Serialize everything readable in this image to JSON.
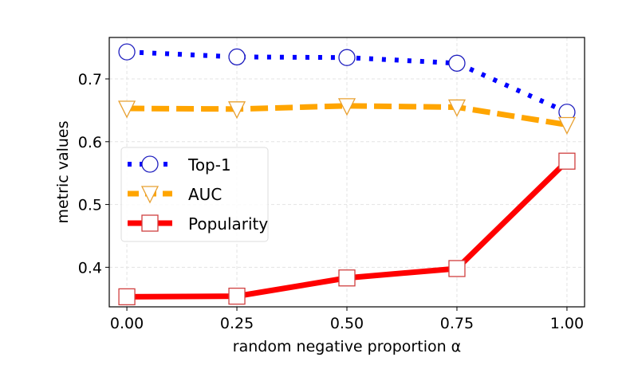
{
  "chart_data": {
    "type": "line",
    "title": "",
    "xlabel": "random negative proportion α",
    "ylabel": "metric values",
    "x": [
      0.0,
      0.25,
      0.5,
      0.75,
      1.0
    ],
    "xlim": [
      -0.04,
      1.04
    ],
    "ylim": [
      0.337,
      0.766
    ],
    "xticks": [
      0.0,
      0.25,
      0.5,
      0.75,
      1.0
    ],
    "xtick_labels": [
      "0.00",
      "0.25",
      "0.50",
      "0.75",
      "1.00"
    ],
    "yticks": [
      0.4,
      0.5,
      0.6,
      0.7
    ],
    "ytick_labels": [
      "0.4",
      "0.5",
      "0.6",
      "0.7"
    ],
    "grid": true,
    "legend_position": "center-left",
    "series": [
      {
        "name": "Top-1",
        "values": [
          0.743,
          0.735,
          0.734,
          0.725,
          0.647
        ],
        "color": "#0000ff",
        "line": "dotted",
        "marker": "circle",
        "marker_color": "#1f1fbf"
      },
      {
        "name": "AUC",
        "values": [
          0.653,
          0.652,
          0.657,
          0.655,
          0.627
        ],
        "color": "#ffa500",
        "line": "dashed",
        "marker": "triangle-down",
        "marker_color": "#e8a030"
      },
      {
        "name": "Popularity",
        "values": [
          0.353,
          0.354,
          0.383,
          0.398,
          0.569
        ],
        "color": "#ff0000",
        "line": "solid",
        "marker": "square",
        "marker_color": "#d04040"
      }
    ]
  }
}
